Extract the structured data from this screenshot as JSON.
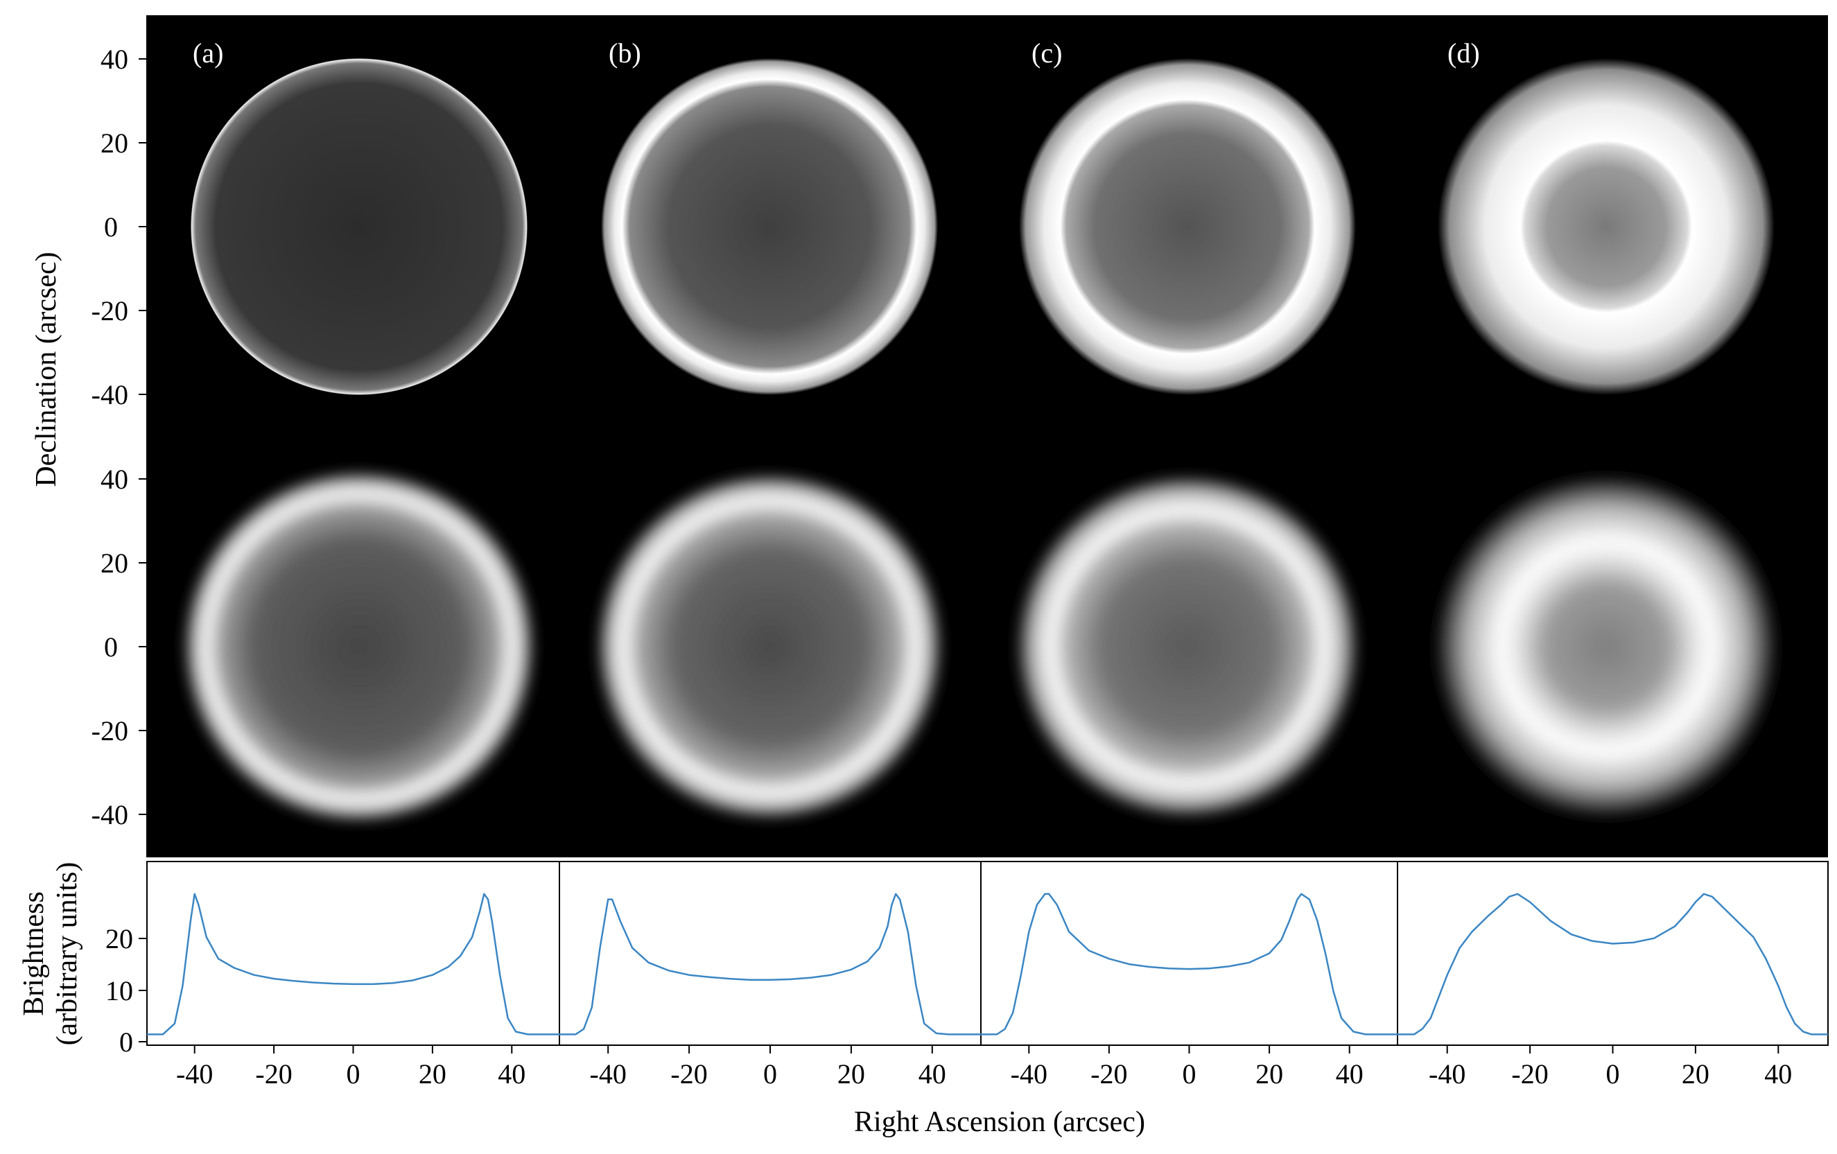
{
  "figure": {
    "panel_labels": [
      "(a)",
      "(b)",
      "(c)",
      "(d)"
    ],
    "y_axis_label": "Declination (arcsec)",
    "x_axis_label": "Right Ascension (arcsec)",
    "profile_y_label_line1": "Brightness",
    "profile_y_label_line2": "(arbitrary units)"
  },
  "chart_data": [
    {
      "type": "heatmap",
      "description_row": "top images",
      "ylabel": "Declination (arcsec)",
      "y_ticks": [
        "40",
        "20",
        "0",
        "-20",
        "-40"
      ],
      "ylim": [
        -50,
        50
      ],
      "panels": [
        {
          "label": "(a)",
          "outer_radius": 40,
          "bright_rim_radius": 40,
          "center_offset": [
            0,
            0
          ]
        },
        {
          "label": "(b)",
          "outer_radius": 40,
          "bright_rim_radius": 35,
          "center_offset": [
            0,
            0
          ]
        },
        {
          "label": "(c)",
          "outer_radius": 40,
          "bright_rim_radius": 30,
          "center_offset": [
            0,
            0
          ]
        },
        {
          "label": "(d)",
          "outer_radius": 40,
          "bright_rim_radius": 20,
          "center_offset": [
            0,
            0
          ]
        }
      ]
    },
    {
      "type": "heatmap",
      "description_row": "bottom images",
      "y_ticks": [
        "40",
        "20",
        "0",
        "-20",
        "-40"
      ],
      "ylim": [
        -50,
        50
      ],
      "panels": [
        {
          "outer_radius": 41,
          "bright_rim_radius": 37
        },
        {
          "outer_radius": 40,
          "bright_rim_radius": 34
        },
        {
          "outer_radius": 39,
          "bright_rim_radius": 31
        },
        {
          "outer_radius": 38,
          "bright_rim_radius": 23
        }
      ]
    },
    {
      "type": "line",
      "xlabel": "Right Ascension (arcsec)",
      "ylabel": "Brightness (arbitrary units)",
      "x_ticks": [
        "-40",
        "-20",
        "0",
        "20",
        "40"
      ],
      "y_ticks": [
        "20",
        "10",
        "0"
      ],
      "xlim": [
        -52,
        52
      ],
      "ylim": [
        -1,
        33
      ],
      "line_color": "#3a86c4",
      "series": [
        {
          "x": [
            -52,
            -48,
            -45,
            -43,
            -41,
            -40,
            -39,
            -37,
            -34,
            -30,
            -25,
            -20,
            -15,
            -10,
            -5,
            0,
            5,
            10,
            15,
            20,
            24,
            27,
            30,
            32,
            33,
            34,
            35,
            37,
            39,
            41,
            44,
            48,
            52
          ],
          "values": [
            1,
            1,
            3,
            10,
            22,
            27,
            25,
            19,
            15,
            13.3,
            12,
            11.3,
            10.9,
            10.6,
            10.4,
            10.3,
            10.3,
            10.5,
            11,
            12,
            13.5,
            15.5,
            19,
            24,
            27,
            26,
            22,
            12,
            4,
            1.5,
            1,
            1,
            1
          ]
        },
        {
          "x": [
            -52,
            -48,
            -46,
            -44,
            -42,
            -40,
            -39,
            -37,
            -34,
            -30,
            -25,
            -20,
            -15,
            -10,
            -5,
            0,
            5,
            10,
            15,
            20,
            24,
            27,
            29,
            30,
            31,
            32,
            34,
            36,
            38,
            41,
            44,
            48,
            52
          ],
          "values": [
            1,
            1,
            2,
            6,
            17,
            26,
            26,
            22,
            17,
            14.3,
            12.8,
            12,
            11.6,
            11.3,
            11.1,
            11.1,
            11.2,
            11.5,
            12,
            13,
            14.5,
            17,
            21,
            25,
            27,
            26,
            20,
            10,
            3,
            1.2,
            1,
            1,
            1
          ]
        },
        {
          "x": [
            -52,
            -48,
            -46,
            -44,
            -42,
            -40,
            -38,
            -36,
            -35,
            -33,
            -30,
            -25,
            -20,
            -15,
            -10,
            -5,
            0,
            5,
            10,
            15,
            20,
            23,
            25,
            27,
            28,
            30,
            32,
            34,
            36,
            38,
            41,
            44,
            48,
            52
          ],
          "values": [
            1,
            1,
            2,
            5,
            12,
            20,
            25,
            27,
            27,
            25,
            20,
            16.5,
            15,
            14,
            13.5,
            13.2,
            13.1,
            13.2,
            13.6,
            14.3,
            16,
            18.5,
            22,
            26,
            27,
            26,
            22,
            16,
            9,
            4,
            1.5,
            1,
            1,
            1
          ]
        },
        {
          "x": [
            -52,
            -48,
            -46,
            -44,
            -42,
            -40,
            -37,
            -34,
            -30,
            -27,
            -25,
            -23,
            -20,
            -15,
            -10,
            -5,
            0,
            5,
            10,
            15,
            18,
            20,
            22,
            24,
            26,
            30,
            34,
            37,
            40,
            42,
            44,
            46,
            48,
            52
          ],
          "values": [
            1,
            1,
            2,
            4,
            8,
            12,
            17,
            20,
            23,
            25,
            26.5,
            27,
            25.5,
            22,
            19.5,
            18.3,
            17.8,
            18,
            18.8,
            21,
            23.5,
            25.5,
            27,
            26.5,
            25,
            22,
            19,
            15,
            10,
            6,
            3,
            1.5,
            1,
            1
          ]
        }
      ]
    }
  ]
}
